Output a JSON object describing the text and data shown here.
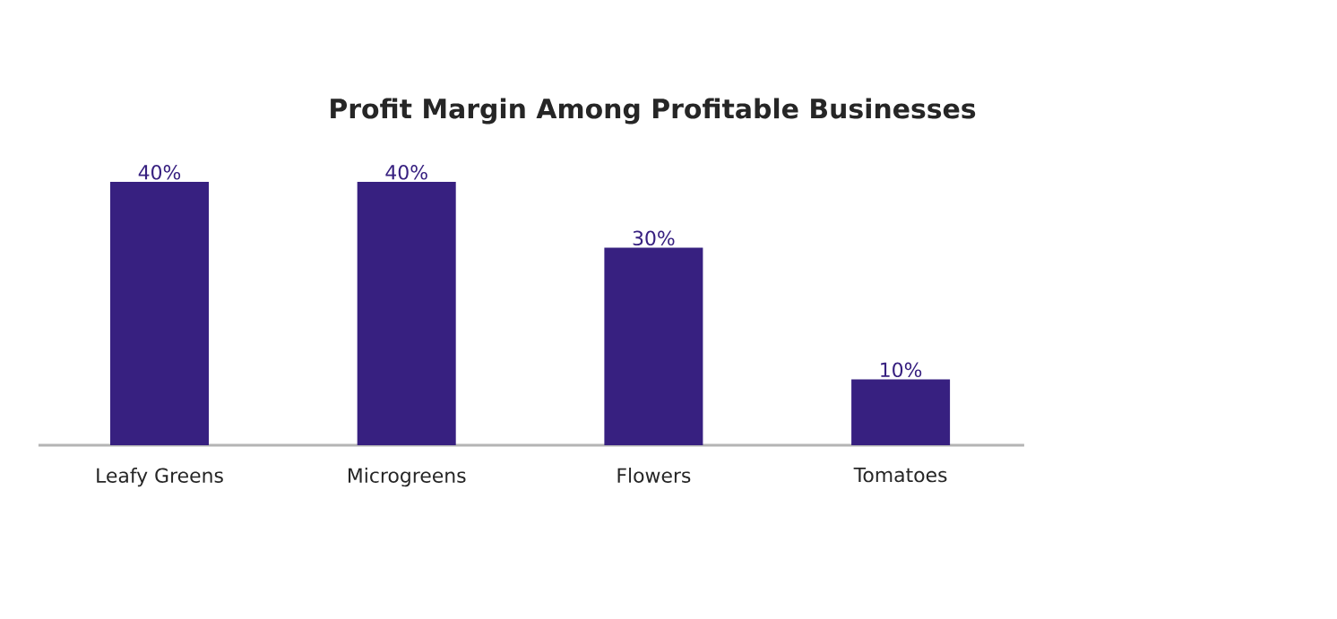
{
  "chart_data": {
    "type": "bar",
    "title": "Profit Margin Among Profitable Businesses",
    "categories": [
      "Leafy Greens",
      "Microgreens",
      "Flowers",
      "Tomatoes"
    ],
    "values": [
      40,
      40,
      30,
      10
    ],
    "value_labels": [
      "40%",
      "40%",
      "30%",
      "10%"
    ],
    "color": "#372080"
  }
}
